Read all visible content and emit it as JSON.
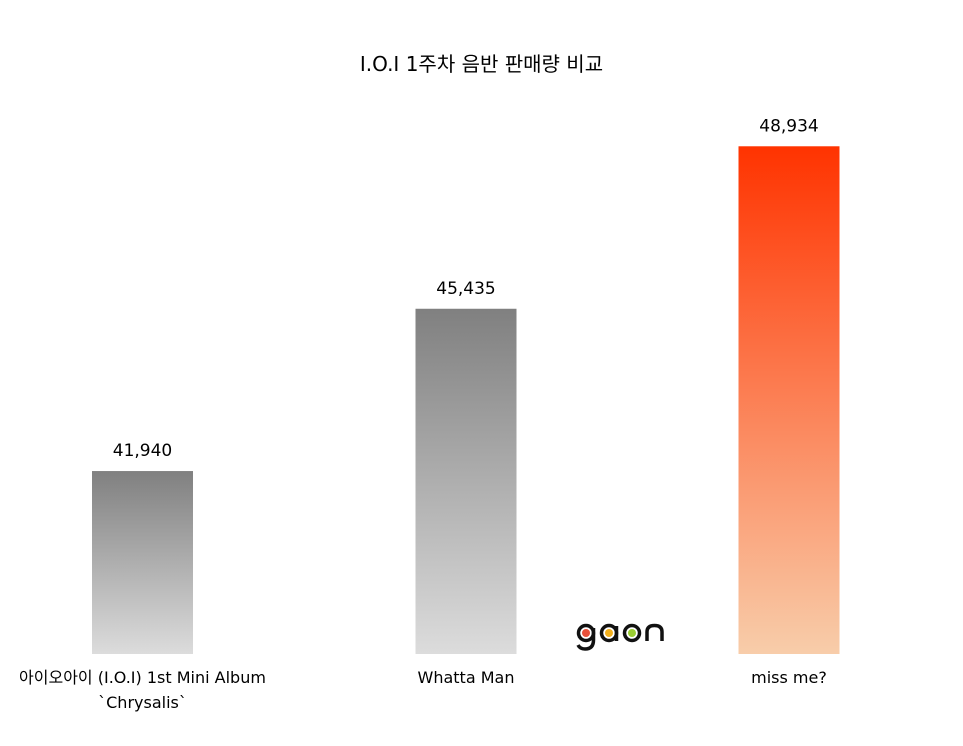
{
  "chart_data": {
    "type": "bar",
    "title": "I.O.I 1주차 음반 판매량 비교",
    "categories": [
      "아이오아이 (I.O.I) 1st Mini Album\n`Chrysalis`",
      "Whatta Man",
      "miss me?"
    ],
    "values": [
      41940,
      45435,
      48934
    ],
    "data_labels": [
      "41,940",
      "45,435",
      "48,934"
    ],
    "ylim": [
      38000,
      49500
    ],
    "grid": false,
    "xlabel": "",
    "ylabel": "",
    "colors": {
      "gray_top": "#808080",
      "gray_bottom": "#dcdcdc",
      "highlight_top": "#ff3300",
      "highlight_bottom": "#f8cdaa"
    },
    "highlight_index": 2
  },
  "logo": {
    "text": "gaon",
    "dot_colors": [
      "#e8503a",
      "#f2b01e",
      "#9acd32"
    ]
  }
}
